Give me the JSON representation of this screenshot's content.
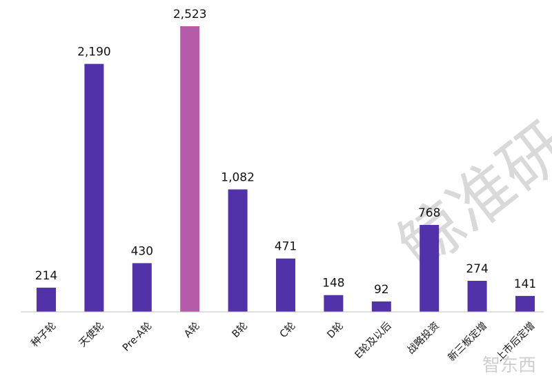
{
  "chart_data": {
    "type": "bar",
    "categories": [
      "种子轮",
      "天使轮",
      "Pre-A轮",
      "A轮",
      "B轮",
      "C轮",
      "D轮",
      "E轮及以后",
      "战略投资",
      "新三板定增",
      "上市后定增"
    ],
    "values": [
      214,
      2190,
      430,
      2523,
      1082,
      471,
      148,
      92,
      768,
      274,
      141
    ],
    "value_labels": [
      "214",
      "2,190",
      "430",
      "2,523",
      "1,082",
      "471",
      "148",
      "92",
      "768",
      "274",
      "141"
    ],
    "colors": {
      "default": "#5232A8",
      "highlight": "#B45BAA",
      "axis": "#bfbfbf"
    },
    "highlight_index": 3,
    "ylim": [
      0,
      2523
    ],
    "grid": false,
    "legend": "none",
    "title": "",
    "xlabel": "",
    "ylabel": ""
  },
  "watermark": {
    "text": "鲸准研",
    "brand": "智东西"
  }
}
